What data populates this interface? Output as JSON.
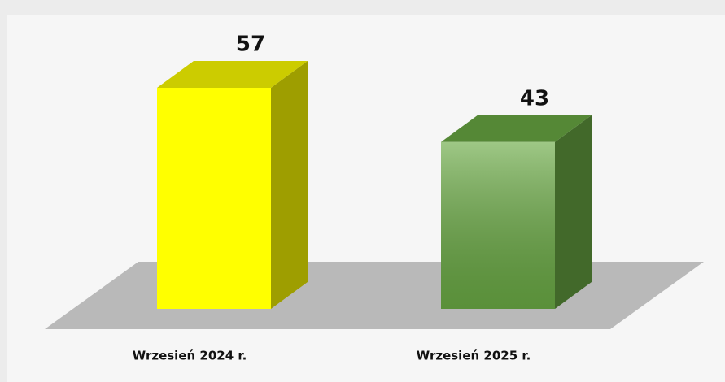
{
  "chart_data": {
    "type": "bar3d",
    "categories": [
      "Wrzesień 2024 r.",
      "Wrzesień 2025 r."
    ],
    "values": [
      57,
      43
    ],
    "colors": [
      "#ffff00",
      "#6aaa44"
    ]
  }
}
